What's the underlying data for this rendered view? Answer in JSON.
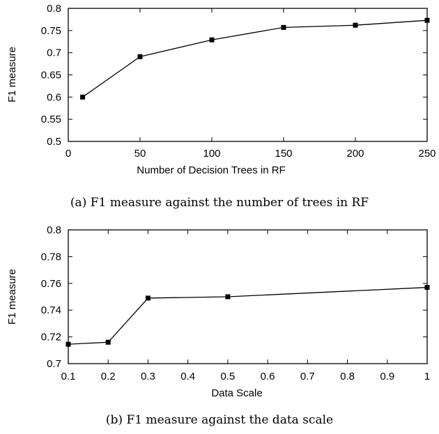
{
  "chart_data": [
    {
      "type": "line",
      "caption": "(a) F1 measure against the number of trees in RF",
      "xlabel": "Number of Decision Trees in RF",
      "ylabel": "F1 measure",
      "xlim": [
        0,
        250
      ],
      "ylim": [
        0.5,
        0.8
      ],
      "xticks": [
        0,
        50,
        100,
        150,
        200,
        250
      ],
      "yticks": [
        0.5,
        0.55,
        0.6,
        0.65,
        0.7,
        0.75,
        0.8
      ],
      "xtick_labels": [
        "0",
        "50",
        "100",
        "150",
        "200",
        "250"
      ],
      "ytick_labels": [
        "0.5",
        "0.55",
        "0.6",
        "0.65",
        "0.7",
        "0.75",
        "0.8"
      ],
      "grid": false,
      "series": [
        {
          "x": [
            10,
            50,
            100,
            150,
            200,
            250
          ],
          "values": [
            0.6,
            0.691,
            0.729,
            0.757,
            0.762,
            0.773
          ]
        }
      ]
    },
    {
      "type": "line",
      "caption": "(b) F1 measure against the data scale",
      "xlabel": "Data Scale",
      "ylabel": "F1 measure",
      "xlim": [
        0.1,
        1
      ],
      "ylim": [
        0.7,
        0.8
      ],
      "xticks": [
        0.1,
        0.2,
        0.3,
        0.4,
        0.5,
        0.6,
        0.7,
        0.8,
        0.9,
        1
      ],
      "yticks": [
        0.7,
        0.72,
        0.74,
        0.76,
        0.78,
        0.8
      ],
      "xtick_labels": [
        "0.1",
        "0.2",
        "0.3",
        "0.4",
        "0.5",
        "0.6",
        "0.7",
        "0.8",
        "0.9",
        "1"
      ],
      "ytick_labels": [
        "0.7",
        "0.72",
        "0.74",
        "0.76",
        "0.78",
        "0.8"
      ],
      "grid": false,
      "series": [
        {
          "x": [
            0.1,
            0.2,
            0.3,
            0.5,
            1
          ],
          "values": [
            0.7145,
            0.716,
            0.749,
            0.75,
            0.757
          ]
        }
      ]
    }
  ]
}
